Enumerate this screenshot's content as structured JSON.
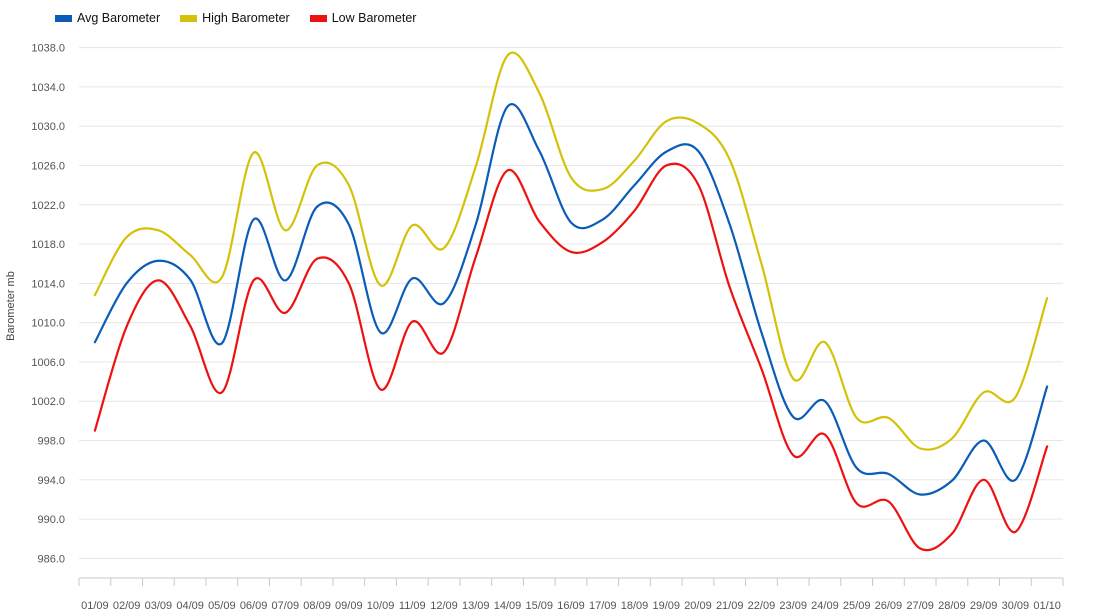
{
  "legend": {
    "avg": "Avg Barometer",
    "high": "High Barometer",
    "low": "Low Barometer"
  },
  "colors": {
    "avg": "#0a5cb8",
    "high": "#d4c20a",
    "low": "#ee1111",
    "grid": "#e6e6e6",
    "axis": "#c8c8c8",
    "text": "#555555"
  },
  "chart_data": {
    "type": "line",
    "ylabel": "Barometer mb",
    "xlabel": "",
    "ylim": [
      984.0,
      1040.0
    ],
    "yticks": [
      986.0,
      990.0,
      994.0,
      998.0,
      1002.0,
      1006.0,
      1010.0,
      1014.0,
      1018.0,
      1022.0,
      1026.0,
      1030.0,
      1034.0,
      1038.0
    ],
    "ytick_labels": [
      "986.0",
      "990.0",
      "994.0",
      "998.0",
      "1002.0",
      "1006.0",
      "1010.0",
      "1014.0",
      "1018.0",
      "1022.0",
      "1026.0",
      "1030.0",
      "1034.0",
      "1038.0"
    ],
    "x": [
      "09/01",
      "09/02",
      "09/03",
      "09/04",
      "09/05",
      "09/06",
      "09/07",
      "09/08",
      "09/09",
      "09/10",
      "09/11",
      "09/12",
      "09/13",
      "09/14",
      "09/15",
      "09/16",
      "09/17",
      "09/18",
      "09/19",
      "09/20",
      "09/21",
      "09/22",
      "09/23",
      "09/24",
      "09/25",
      "09/26",
      "09/27",
      "09/28",
      "09/29",
      "09/30",
      "10/01"
    ],
    "tick_labels": [
      "01/09",
      "02/09",
      "03/09",
      "04/09",
      "05/09",
      "06/09",
      "07/09",
      "08/09",
      "09/09",
      "10/09",
      "11/09",
      "12/09",
      "13/09",
      "14/09",
      "15/09",
      "16/09",
      "17/09",
      "18/09",
      "19/09",
      "20/09",
      "21/09",
      "22/09",
      "23/09",
      "24/09",
      "25/09",
      "26/09",
      "27/09",
      "28/09",
      "29/09",
      "30/09",
      "01/10"
    ],
    "series": [
      {
        "name": "Avg Barometer",
        "color": "#0a5cb8",
        "values": [
          1008.0,
          1014.0,
          1016.3,
          1014.4,
          1007.9,
          1020.5,
          1014.3,
          1021.8,
          1020.0,
          1009.0,
          1014.5,
          1012.0,
          1020.0,
          1032.0,
          1027.5,
          1020.2,
          1020.5,
          1024.0,
          1027.4,
          1027.5,
          1020.0,
          1009.0,
          1000.4,
          1002.0,
          995.2,
          994.6,
          992.5,
          993.9,
          998.0,
          994.0,
          1003.5
        ]
      },
      {
        "name": "High Barometer",
        "color": "#d4c20a",
        "values": [
          1012.8,
          1018.7,
          1019.4,
          1016.9,
          1014.6,
          1027.3,
          1019.4,
          1026.0,
          1024.0,
          1013.8,
          1019.9,
          1017.6,
          1025.9,
          1037.2,
          1033.4,
          1024.8,
          1023.6,
          1026.5,
          1030.5,
          1030.3,
          1026.6,
          1016.0,
          1004.3,
          1008.0,
          1000.3,
          1000.3,
          997.2,
          998.2,
          1002.9,
          1002.4,
          1012.5
        ]
      },
      {
        "name": "Low Barometer",
        "color": "#ee1111",
        "values": [
          999.0,
          1009.6,
          1014.3,
          1009.7,
          1002.9,
          1014.3,
          1011.0,
          1016.5,
          1014.0,
          1003.2,
          1010.1,
          1007.0,
          1016.7,
          1025.5,
          1020.3,
          1017.2,
          1018.2,
          1021.4,
          1026.0,
          1024.1,
          1013.6,
          1005.3,
          996.5,
          998.6,
          991.6,
          991.8,
          987.0,
          988.5,
          994.0,
          988.7,
          997.4
        ]
      }
    ]
  }
}
